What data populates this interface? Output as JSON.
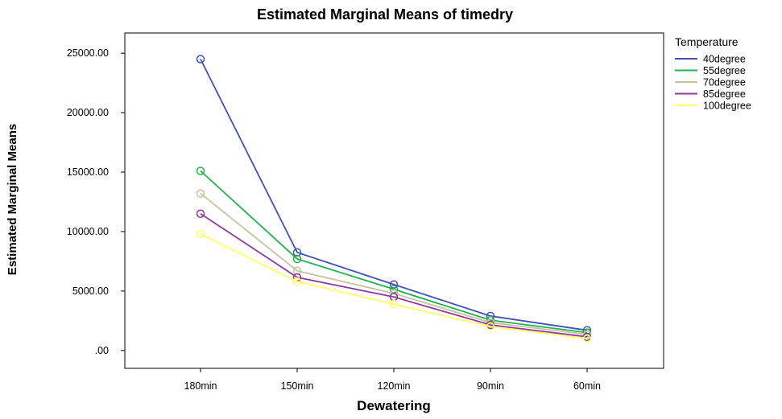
{
  "chart_data": {
    "type": "line",
    "title": "Estimated Marginal Means of timedry",
    "xlabel": "Dewatering",
    "ylabel": "Estimated Marginal Means",
    "categories": [
      "180min",
      "150min",
      "120min",
      "90min",
      "60min"
    ],
    "y_ticks": [
      ".00",
      "5000.00",
      "10000.00",
      "15000.00",
      "20000.00",
      "25000.00"
    ],
    "ylim": [
      -1500,
      26700
    ],
    "grid": false,
    "legend": {
      "title": "Temperature",
      "placement": "right"
    },
    "marker": "open-circle",
    "series": [
      {
        "name": "40degree",
        "color": "#3f51b5",
        "values": [
          24500,
          8250,
          5550,
          2900,
          1700
        ]
      },
      {
        "name": "55degree",
        "color": "#22b14c",
        "values": [
          15100,
          7700,
          5150,
          2550,
          1500
        ]
      },
      {
        "name": "70degree",
        "color": "#c8c2a0",
        "values": [
          13200,
          6700,
          4800,
          2350,
          1350
        ]
      },
      {
        "name": "85degree",
        "color": "#8e3a9d",
        "values": [
          11500,
          6150,
          4500,
          2150,
          1150
        ]
      },
      {
        "name": "100degree",
        "color": "#ffff66",
        "values": [
          9800,
          5800,
          3900,
          2000,
          1000
        ]
      }
    ]
  }
}
